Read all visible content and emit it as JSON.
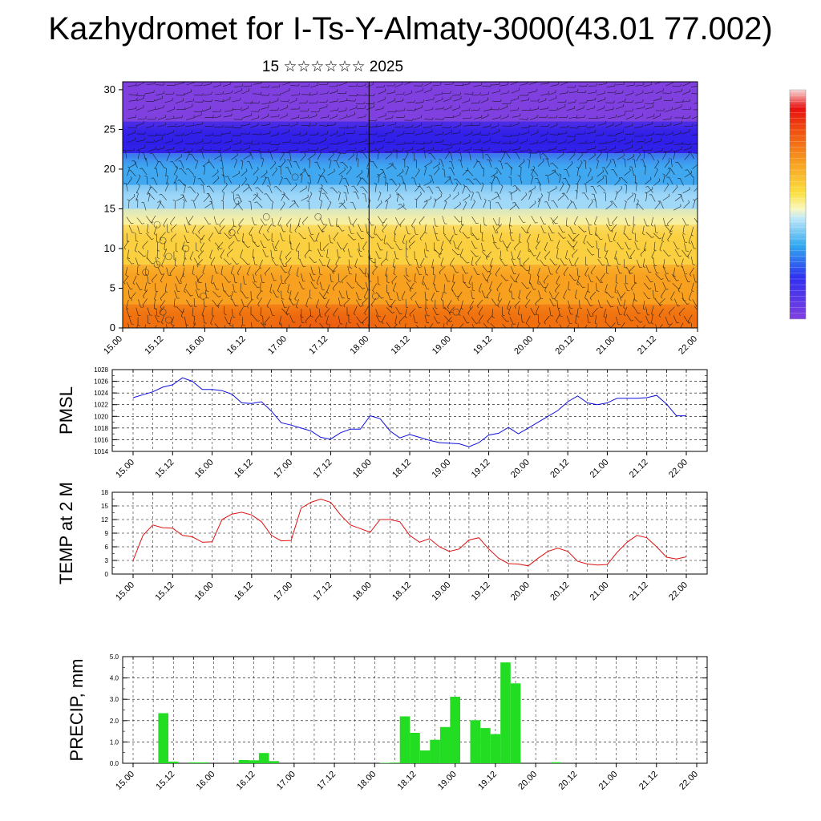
{
  "header": {
    "title": "Kazhydromet for I-Ts-Y-Almaty-3000(43.01 77.002)",
    "subtitle": "15 ☆☆☆☆☆☆ 2025"
  },
  "colors": {
    "pmsl_line": "#1010e0",
    "temp_line": "#e01010",
    "precip_bar": "#22dd22"
  },
  "time_labels": [
    "15.00",
    "15.12",
    "16.00",
    "16.12",
    "17.00",
    "17.12",
    "18.00",
    "18.12",
    "19.00",
    "19.12",
    "20.00",
    "20.12",
    "21.00",
    "21.12",
    "22.00"
  ],
  "chart_data": [
    {
      "type": "heatmap",
      "title": "",
      "xlabel": "",
      "ylabel": "",
      "ylim": [
        0,
        31
      ],
      "y_ticks": [
        0,
        5,
        10,
        15,
        20,
        25,
        30
      ],
      "x_ticks": [
        "15.00",
        "15.12",
        "16.00",
        "16.12",
        "17.00",
        "17.12",
        "18.00",
        "18.12",
        "19.00",
        "19.12",
        "20.00",
        "20.12",
        "21.00",
        "21.12",
        "22.00"
      ],
      "layers": [
        {
          "from": 0,
          "to": 3,
          "color": "#f07010"
        },
        {
          "from": 3,
          "to": 8,
          "color": "#f8a020"
        },
        {
          "from": 8,
          "to": 13,
          "color": "#fbd040"
        },
        {
          "from": 13,
          "to": 15,
          "color": "#f8f0a0"
        },
        {
          "from": 15,
          "to": 18,
          "color": "#a0d8f8"
        },
        {
          "from": 18,
          "to": 22,
          "color": "#40a8f0"
        },
        {
          "from": 22,
          "to": 26,
          "color": "#3020e8"
        },
        {
          "from": 26,
          "to": 31,
          "color": "#8040e0"
        }
      ],
      "hotspot": {
        "x": "17.12",
        "y_from": 0,
        "y_to": 5,
        "color": "#e03010"
      }
    },
    {
      "type": "line",
      "ylabel": "PMSL",
      "ylim": [
        1014,
        1028
      ],
      "y_ticks": [
        1014,
        1016,
        1018,
        1020,
        1022,
        1024,
        1026,
        1028
      ],
      "x": [
        "15.00",
        "15.03",
        "15.06",
        "15.09",
        "15.12",
        "15.15",
        "15.18",
        "15.21",
        "16.00",
        "16.03",
        "16.06",
        "16.09",
        "16.12",
        "16.15",
        "16.18",
        "16.21",
        "17.00",
        "17.03",
        "17.06",
        "17.09",
        "17.12",
        "17.15",
        "17.18",
        "17.21",
        "18.00",
        "18.03",
        "18.06",
        "18.09",
        "18.12",
        "18.15",
        "18.18",
        "18.21",
        "19.00",
        "19.03",
        "19.06",
        "19.09",
        "19.12",
        "19.15",
        "19.18",
        "19.21",
        "20.00",
        "20.03",
        "20.06",
        "20.09",
        "20.12",
        "20.15",
        "20.18",
        "20.21",
        "21.00",
        "21.03",
        "21.06",
        "21.09",
        "21.12",
        "21.15",
        "21.18",
        "21.21",
        "22.00"
      ],
      "series": [
        {
          "values": [
            1023.2,
            1023.7,
            1024.2,
            1025.0,
            1025.4,
            1026.6,
            1026.0,
            1024.6,
            1024.6,
            1024.4,
            1023.8,
            1022.3,
            1022.2,
            1022.5,
            1020.9,
            1018.9,
            1018.5,
            1018.0,
            1017.5,
            1016.4,
            1016.1,
            1017.2,
            1017.8,
            1017.8,
            1020.1,
            1019.6,
            1017.5,
            1016.3,
            1016.9,
            1016.4,
            1015.9,
            1015.5,
            1015.4,
            1015.3,
            1014.8,
            1015.5,
            1016.8,
            1017.1,
            1018.1,
            1017.0,
            1018.0,
            1019.0,
            1020.0,
            1021.0,
            1022.5,
            1023.5,
            1022.3,
            1022.0,
            1022.3,
            1023.1,
            1023.1,
            1023.1,
            1023.2,
            1023.6,
            1022.1,
            1020.1,
            1020.1
          ]
        }
      ]
    },
    {
      "type": "line",
      "ylabel": "TEMP at 2 M",
      "ylim": [
        0,
        18
      ],
      "y_ticks": [
        0,
        3,
        6,
        9,
        12,
        15,
        18
      ],
      "x": [
        "15.00",
        "15.03",
        "15.06",
        "15.09",
        "15.12",
        "15.15",
        "15.18",
        "15.21",
        "16.00",
        "16.03",
        "16.06",
        "16.09",
        "16.12",
        "16.15",
        "16.18",
        "16.21",
        "17.00",
        "17.03",
        "17.06",
        "17.09",
        "17.12",
        "17.15",
        "17.18",
        "17.21",
        "18.00",
        "18.03",
        "18.06",
        "18.09",
        "18.12",
        "18.15",
        "18.18",
        "18.21",
        "19.00",
        "19.03",
        "19.06",
        "19.09",
        "19.12",
        "19.15",
        "19.18",
        "19.21",
        "20.00",
        "20.03",
        "20.06",
        "20.09",
        "20.12",
        "20.15",
        "20.18",
        "20.21",
        "21.00",
        "21.03",
        "21.06",
        "21.09",
        "21.12",
        "21.15",
        "21.18",
        "21.21",
        "22.00"
      ],
      "series": [
        {
          "values": [
            3.0,
            8.5,
            10.8,
            10.2,
            10.1,
            8.5,
            8.2,
            7.0,
            7.1,
            12.0,
            13.2,
            13.6,
            13.0,
            11.5,
            8.5,
            7.3,
            7.4,
            14.5,
            15.8,
            16.5,
            15.8,
            13.0,
            10.8,
            10.0,
            9.2,
            12.0,
            12.0,
            11.5,
            8.5,
            7.0,
            7.8,
            6.0,
            5.0,
            5.5,
            7.5,
            8.0,
            5.5,
            3.5,
            2.3,
            2.2,
            1.8,
            3.5,
            5.0,
            5.7,
            5.0,
            2.8,
            2.2,
            2.0,
            2.1,
            4.8,
            7.0,
            8.5,
            8.0,
            6.0,
            3.7,
            3.3,
            3.8
          ]
        }
      ]
    },
    {
      "type": "bar",
      "ylabel": "PRECIP, mm",
      "ylim": [
        0,
        5
      ],
      "y_ticks": [
        "0.0",
        "1.0",
        "2.0",
        "3.0",
        "4.0",
        "5.0"
      ],
      "categories": [
        "15.00",
        "15.03",
        "15.06",
        "15.09",
        "15.12",
        "15.15",
        "15.18",
        "15.21",
        "16.00",
        "16.03",
        "16.06",
        "16.09",
        "16.12",
        "16.15",
        "16.18",
        "16.21",
        "17.00",
        "17.03",
        "17.06",
        "17.09",
        "17.12",
        "17.15",
        "17.18",
        "17.21",
        "18.00",
        "18.03",
        "18.06",
        "18.09",
        "18.12",
        "18.15",
        "18.18",
        "18.21",
        "19.00",
        "19.03",
        "19.06",
        "19.09",
        "19.12",
        "19.15",
        "19.18",
        "19.21",
        "20.00",
        "20.03",
        "20.06",
        "20.09",
        "20.12",
        "20.15",
        "20.18",
        "20.21",
        "21.00",
        "21.03",
        "21.06",
        "21.09",
        "21.12",
        "21.15",
        "21.18",
        "21.21",
        "22.00"
      ],
      "values": [
        0,
        0,
        0,
        2.35,
        0.08,
        0,
        0.04,
        0.04,
        0,
        0,
        0,
        0.15,
        0.14,
        0.48,
        0.1,
        0,
        0,
        0,
        0,
        0,
        0,
        0,
        0,
        0,
        0,
        0.02,
        0.03,
        2.2,
        1.43,
        0.6,
        1.1,
        1.7,
        3.12,
        0,
        2.02,
        1.65,
        1.37,
        4.73,
        3.75,
        0,
        0,
        0,
        0.05,
        0,
        0,
        0,
        0,
        0,
        0,
        0,
        0,
        0,
        0,
        0,
        0,
        0,
        0
      ]
    }
  ]
}
